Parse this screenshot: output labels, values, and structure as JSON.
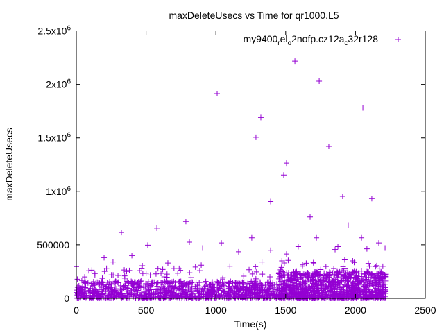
{
  "chart_data": {
    "type": "scatter",
    "title": "maxDeleteUsecs vs Time for qr1000.L5",
    "xlabel": "Time(s)",
    "ylabel": "maxDeleteUsecs",
    "xlim": [
      0,
      2500
    ],
    "ylim": [
      0,
      2500000
    ],
    "grid": false,
    "legend_placement": "top-right",
    "x_ticks": [
      {
        "value": 0,
        "label": "0"
      },
      {
        "value": 500,
        "label": "500"
      },
      {
        "value": 1000,
        "label": "1000"
      },
      {
        "value": 1500,
        "label": "1500"
      },
      {
        "value": 2000,
        "label": "2000"
      },
      {
        "value": 2500,
        "label": "2500"
      }
    ],
    "y_ticks": [
      {
        "value": 0,
        "base": "0",
        "exp": ""
      },
      {
        "value": 500000,
        "base": "500000",
        "exp": ""
      },
      {
        "value": 1000000,
        "base": "1x10",
        "exp": "6"
      },
      {
        "value": 1500000,
        "base": "1.5x10",
        "exp": "6"
      },
      {
        "value": 2000000,
        "base": "2x10",
        "exp": "6"
      },
      {
        "value": 2500000,
        "base": "2.5x10",
        "exp": "6"
      }
    ],
    "series": [
      {
        "name": "my9400_rel_o2nofp.cz12a_c32r128",
        "legend_parts": [
          {
            "text": "my9400",
            "sub": false
          },
          {
            "text": "r",
            "sub": true
          },
          {
            "text": "el",
            "sub": false
          },
          {
            "text": "o",
            "sub": true
          },
          {
            "text": "2nofp.cz12a",
            "sub": false
          },
          {
            "text": "c",
            "sub": true
          },
          {
            "text": "32r128",
            "sub": false
          }
        ],
        "color": "#9400d3",
        "marker": "plus",
        "points": [
          [
            1566,
            2217000
          ],
          [
            1740,
            2030000
          ],
          [
            1009,
            1913000
          ],
          [
            2053,
            1780000
          ],
          [
            1322,
            1690000
          ],
          [
            1287,
            1505000
          ],
          [
            1809,
            1420000
          ],
          [
            1506,
            1264000
          ],
          [
            1486,
            1153000
          ],
          [
            1908,
            953000
          ],
          [
            2117,
            932000
          ],
          [
            1392,
            905000
          ],
          [
            1675,
            760000
          ],
          [
            785,
            718000
          ],
          [
            577,
            656000
          ],
          [
            323,
            615000
          ],
          [
            1948,
            684000
          ],
          [
            1720,
            566000
          ],
          [
            1257,
            566000
          ],
          [
            810,
            525000
          ],
          [
            1039,
            518000
          ],
          [
            512,
            497000
          ],
          [
            2043,
            566000
          ],
          [
            2167,
            518000
          ],
          [
            1590,
            483000
          ],
          [
            1854,
            456000
          ],
          [
            2082,
            463000
          ],
          [
            0,
            297000
          ],
          [
            199,
            380000
          ],
          [
            398,
            400000
          ],
          [
            656,
            330000
          ],
          [
            905,
            470000
          ],
          [
            1163,
            435000
          ],
          [
            1392,
            449000
          ],
          [
            1506,
            414000
          ],
          [
            895,
            310000
          ],
          [
            1874,
            483000
          ],
          [
            1923,
            360000
          ],
          [
            2212,
            470000
          ],
          [
            263,
            340000
          ],
          [
            473,
            305000
          ],
          [
            700,
            280000
          ],
          [
            1100,
            300000
          ],
          [
            1330,
            340000
          ],
          [
            1620,
            300000
          ],
          [
            1980,
            350000
          ],
          [
            2100,
            300000
          ],
          [
            60,
            200000
          ],
          [
            380,
            260000
          ],
          [
            1700,
            330000
          ]
        ],
        "bulk": {
          "count": 2200,
          "segments": [
            {
              "x": [
                0,
                1450
              ],
              "y_max": 160000,
              "tail_max": 300000
            },
            {
              "x": [
                1450,
                2220
              ],
              "y_max": 250000,
              "tail_max": 360000
            }
          ]
        }
      }
    ]
  }
}
